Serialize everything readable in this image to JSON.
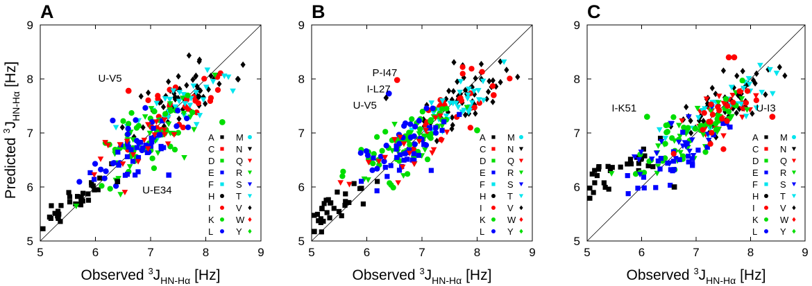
{
  "figure": {
    "ylabel": {
      "main": "Predicted ",
      "sup": "3",
      "j": "J",
      "sub": "HN-Hα",
      "unit": " [Hz]"
    },
    "xlabel": {
      "main": "Observed ",
      "sup": "3",
      "j": "J",
      "sub": "HN-Hα",
      "unit": " [Hz]"
    }
  },
  "legend": {
    "left": [
      {
        "label": "A",
        "color": "#000000",
        "marker": "square"
      },
      {
        "label": "C",
        "color": "#ff0000",
        "marker": "square"
      },
      {
        "label": "D",
        "color": "#00dd00",
        "marker": "square"
      },
      {
        "label": "E",
        "color": "#0000ff",
        "marker": "square"
      },
      {
        "label": "F",
        "color": "#00e5ee",
        "marker": "square"
      },
      {
        "label": "H",
        "color": "#000000",
        "marker": "circle"
      },
      {
        "label": "I",
        "color": "#ff0000",
        "marker": "circle"
      },
      {
        "label": "K",
        "color": "#00dd00",
        "marker": "circle"
      },
      {
        "label": "L",
        "color": "#0000ff",
        "marker": "circle"
      }
    ],
    "right": [
      {
        "label": "M",
        "color": "#00e5ee",
        "marker": "circle"
      },
      {
        "label": "N",
        "color": "#000000",
        "marker": "triangle"
      },
      {
        "label": "Q",
        "color": "#ff0000",
        "marker": "triangle"
      },
      {
        "label": "R",
        "color": "#00dd00",
        "marker": "triangle"
      },
      {
        "label": "S",
        "color": "#0000ff",
        "marker": "triangle"
      },
      {
        "label": "T",
        "color": "#00e5ee",
        "marker": "triangle"
      },
      {
        "label": "V",
        "color": "#000000",
        "marker": "diamond"
      },
      {
        "label": "W",
        "color": "#ff0000",
        "marker": "diamond"
      },
      {
        "label": "Y",
        "color": "#00dd00",
        "marker": "diamond"
      }
    ]
  },
  "chart_data": [
    {
      "type": "scatter",
      "panel": "A",
      "xlim": [
        5,
        9
      ],
      "ylim": [
        5,
        9
      ],
      "xticks": [
        5,
        6,
        7,
        8,
        9
      ],
      "yticks": [
        5,
        6,
        7,
        8,
        9
      ],
      "diagonal": true,
      "annotations": [
        {
          "text": "U-V5",
          "x": 6.05,
          "y": 7.95
        },
        {
          "text": "U-E34",
          "x": 6.85,
          "y": 5.88
        }
      ],
      "cluster_seed": 11,
      "clusters": [
        {
          "marker": "square",
          "color": "#000000",
          "cx": 5.6,
          "cy": 5.75,
          "sx": 0.3,
          "sy": 0.15,
          "n": 32
        },
        {
          "marker": "diamond",
          "color": "#000000",
          "cx": 7.6,
          "cy": 7.7,
          "sx": 0.45,
          "sy": 0.25,
          "n": 60
        },
        {
          "marker": "circle",
          "color": "#ff0000",
          "cx": 7.6,
          "cy": 7.5,
          "sx": 0.45,
          "sy": 0.3,
          "n": 30
        },
        {
          "marker": "triangle",
          "color": "#00e5ee",
          "cx": 7.5,
          "cy": 7.5,
          "sx": 0.4,
          "sy": 0.25,
          "n": 35
        },
        {
          "marker": "circle",
          "color": "#00dd00",
          "cx": 6.9,
          "cy": 6.95,
          "sx": 0.5,
          "sy": 0.3,
          "n": 45
        },
        {
          "marker": "triangle",
          "color": "#00dd00",
          "cx": 7.0,
          "cy": 6.9,
          "sx": 0.5,
          "sy": 0.3,
          "n": 30
        },
        {
          "marker": "square",
          "color": "#0000ff",
          "cx": 6.7,
          "cy": 6.65,
          "sx": 0.4,
          "sy": 0.2,
          "n": 30
        },
        {
          "marker": "circle",
          "color": "#0000ff",
          "cx": 6.7,
          "cy": 6.8,
          "sx": 0.45,
          "sy": 0.25,
          "n": 25
        },
        {
          "marker": "triangle",
          "color": "#ff0000",
          "cx": 6.8,
          "cy": 6.8,
          "sx": 0.4,
          "sy": 0.25,
          "n": 20
        }
      ],
      "points": [
        {
          "x": 6.6,
          "y": 7.78,
          "marker": "circle",
          "color": "#ff0000"
        },
        {
          "x": 7.33,
          "y": 6.22,
          "marker": "square",
          "color": "#0000ff"
        },
        {
          "x": 8.3,
          "y": 7.2,
          "marker": "circle",
          "color": "#00dd00"
        },
        {
          "x": 6.4,
          "y": 6.1,
          "marker": "square",
          "color": "#000000"
        }
      ]
    },
    {
      "type": "scatter",
      "panel": "B",
      "xlim": [
        5,
        9
      ],
      "ylim": [
        5,
        9
      ],
      "xticks": [
        5,
        6,
        7,
        8,
        9
      ],
      "yticks": [
        5,
        6,
        7,
        8,
        9
      ],
      "diagonal": true,
      "annotations": [
        {
          "text": "P-I47",
          "x": 6.1,
          "y": 8.05
        },
        {
          "text": "I-L27",
          "x": 6.0,
          "y": 7.75
        },
        {
          "text": "U-V5",
          "x": 5.75,
          "y": 7.45
        }
      ],
      "cluster_seed": 23,
      "clusters": [
        {
          "marker": "square",
          "color": "#000000",
          "cx": 5.5,
          "cy": 5.65,
          "sx": 0.3,
          "sy": 0.12,
          "n": 32
        },
        {
          "marker": "diamond",
          "color": "#000000",
          "cx": 7.6,
          "cy": 7.55,
          "sx": 0.45,
          "sy": 0.25,
          "n": 55
        },
        {
          "marker": "circle",
          "color": "#ff0000",
          "cx": 7.5,
          "cy": 7.45,
          "sx": 0.45,
          "sy": 0.25,
          "n": 30
        },
        {
          "marker": "triangle",
          "color": "#00e5ee",
          "cx": 7.5,
          "cy": 7.4,
          "sx": 0.45,
          "sy": 0.25,
          "n": 35
        },
        {
          "marker": "circle",
          "color": "#00dd00",
          "cx": 6.7,
          "cy": 6.85,
          "sx": 0.45,
          "sy": 0.25,
          "n": 50
        },
        {
          "marker": "triangle",
          "color": "#00dd00",
          "cx": 6.8,
          "cy": 6.8,
          "sx": 0.45,
          "sy": 0.25,
          "n": 30
        },
        {
          "marker": "square",
          "color": "#0000ff",
          "cx": 6.7,
          "cy": 6.6,
          "sx": 0.4,
          "sy": 0.2,
          "n": 30
        },
        {
          "marker": "circle",
          "color": "#0000ff",
          "cx": 6.6,
          "cy": 6.85,
          "sx": 0.4,
          "sy": 0.25,
          "n": 25
        },
        {
          "marker": "triangle",
          "color": "#ff0000",
          "cx": 6.7,
          "cy": 6.75,
          "sx": 0.4,
          "sy": 0.25,
          "n": 20
        }
      ],
      "points": [
        {
          "x": 6.55,
          "y": 7.98,
          "marker": "circle",
          "color": "#ff0000"
        },
        {
          "x": 6.4,
          "y": 7.73,
          "marker": "circle",
          "color": "#0000ff"
        },
        {
          "x": 6.35,
          "y": 7.65,
          "marker": "diamond",
          "color": "#000000"
        },
        {
          "x": 8.0,
          "y": 7.05,
          "marker": "circle",
          "color": "#00dd00"
        },
        {
          "x": 8.3,
          "y": 7.7,
          "marker": "circle",
          "color": "#ff0000"
        }
      ]
    },
    {
      "type": "scatter",
      "panel": "C",
      "xlim": [
        5,
        9
      ],
      "ylim": [
        5,
        9
      ],
      "xticks": [
        5,
        6,
        7,
        8,
        9
      ],
      "yticks": [
        5,
        6,
        7,
        8,
        9
      ],
      "diagonal": true,
      "annotations": [
        {
          "text": "I-K51",
          "x": 5.45,
          "y": 7.4
        },
        {
          "text": "U-I3",
          "x": 8.1,
          "y": 7.4
        }
      ],
      "cluster_seed": 37,
      "clusters": [
        {
          "marker": "square",
          "color": "#000000",
          "cx": 5.6,
          "cy": 6.3,
          "sx": 0.35,
          "sy": 0.15,
          "n": 30
        },
        {
          "marker": "diamond",
          "color": "#000000",
          "cx": 7.6,
          "cy": 7.6,
          "sx": 0.45,
          "sy": 0.25,
          "n": 55
        },
        {
          "marker": "triangle",
          "color": "#ff0000",
          "cx": 7.4,
          "cy": 7.35,
          "sx": 0.4,
          "sy": 0.25,
          "n": 30
        },
        {
          "marker": "triangle",
          "color": "#00e5ee",
          "cx": 7.4,
          "cy": 7.5,
          "sx": 0.45,
          "sy": 0.25,
          "n": 30
        },
        {
          "marker": "circle",
          "color": "#00dd00",
          "cx": 6.8,
          "cy": 6.95,
          "sx": 0.5,
          "sy": 0.25,
          "n": 45
        },
        {
          "marker": "triangle",
          "color": "#00dd00",
          "cx": 7.0,
          "cy": 7.0,
          "sx": 0.5,
          "sy": 0.25,
          "n": 30
        },
        {
          "marker": "square",
          "color": "#0000ff",
          "cx": 6.6,
          "cy": 6.5,
          "sx": 0.45,
          "sy": 0.2,
          "n": 30
        },
        {
          "marker": "triangle",
          "color": "#0000ff",
          "cx": 6.7,
          "cy": 6.9,
          "sx": 0.45,
          "sy": 0.2,
          "n": 25
        },
        {
          "marker": "circle",
          "color": "#ff0000",
          "cx": 7.5,
          "cy": 7.4,
          "sx": 0.4,
          "sy": 0.25,
          "n": 20
        }
      ],
      "points": [
        {
          "x": 7.6,
          "y": 8.4,
          "marker": "circle",
          "color": "#ff0000"
        },
        {
          "x": 7.7,
          "y": 8.4,
          "marker": "circle",
          "color": "#ff0000"
        },
        {
          "x": 6.1,
          "y": 7.3,
          "marker": "circle",
          "color": "#00dd00"
        },
        {
          "x": 8.4,
          "y": 7.3,
          "marker": "circle",
          "color": "#ff0000"
        },
        {
          "x": 6.6,
          "y": 6.0,
          "marker": "square",
          "color": "#000000"
        }
      ]
    }
  ]
}
